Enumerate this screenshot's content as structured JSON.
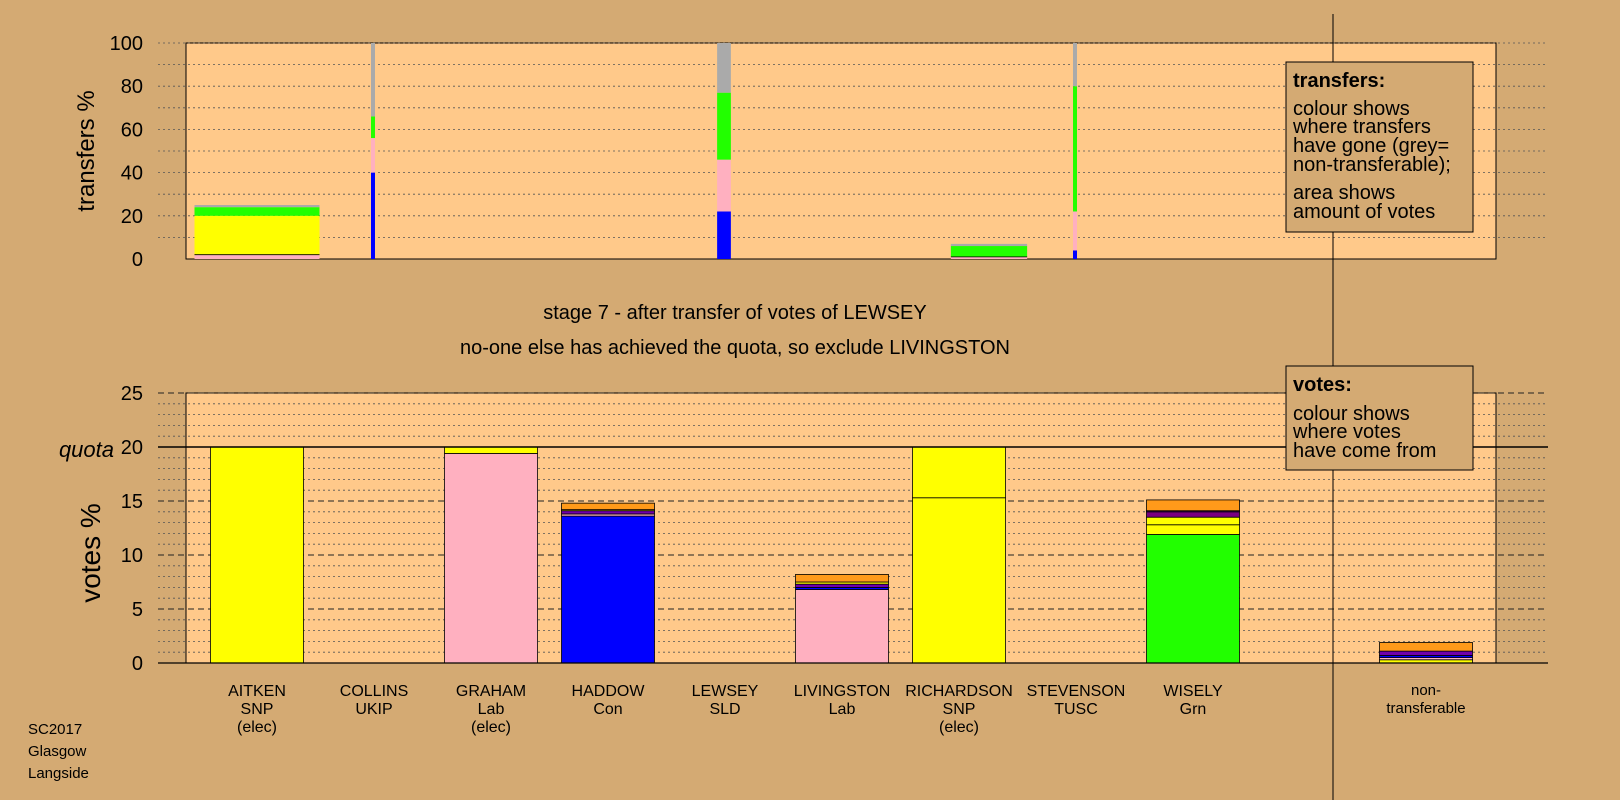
{
  "colors": {
    "background": "#d4aa73",
    "panel": "#ffc98a",
    "party": {
      "SNP": "#ffff00",
      "Lab": "#ffb0c0",
      "Con": "#0000ff",
      "Grn": "#22ff00",
      "SLD": "#ff9a1a",
      "TUSC": "#7a0080",
      "UKIP": "#7000aa",
      "NT": "#aaaaaa"
    }
  },
  "headings": {
    "stage": "stage 7 - after transfer of votes of LEWSEY",
    "action": "no-one else has achieved the quota, so exclude LIVINGSTON"
  },
  "footer": [
    "SC2017",
    "Glasgow",
    "Langside"
  ],
  "legend_transfers": {
    "title": "transfers:",
    "lines1": [
      "colour shows",
      "where transfers",
      "have gone (grey=",
      "non-transferable);"
    ],
    "lines2": [
      "area shows",
      "amount of votes"
    ]
  },
  "legend_votes": {
    "title": "votes:",
    "lines": [
      "colour shows",
      "where votes",
      "have come from"
    ]
  },
  "chart_data": [
    {
      "type": "bar",
      "stacked": true,
      "ylabel": "transfers %",
      "ylim": [
        0,
        100
      ],
      "yticks": [
        0,
        20,
        40,
        60,
        80,
        100
      ],
      "grid": "dotted every 10",
      "note": "bar width shows amount of votes transferred; segments show where transfers have gone",
      "bars": [
        {
          "candidate": "AITKEN",
          "share": 1.0,
          "segments": [
            {
              "party": "Lab",
              "from": 0,
              "to": 2
            },
            {
              "party": "SNP",
              "from": 2,
              "to": 20
            },
            {
              "party": "Grn",
              "from": 20,
              "to": 24
            },
            {
              "party": "NT",
              "from": 24,
              "to": 25
            }
          ]
        },
        {
          "candidate": "COLLINS",
          "share": 0.03,
          "segments": [
            {
              "party": "Con",
              "from": 0,
              "to": 40
            },
            {
              "party": "Lab",
              "from": 40,
              "to": 56
            },
            {
              "party": "Grn",
              "from": 56,
              "to": 66
            },
            {
              "party": "NT",
              "from": 66,
              "to": 100
            }
          ]
        },
        {
          "candidate": "LEWSEY",
          "share": 0.11,
          "segments": [
            {
              "party": "Con",
              "from": 0,
              "to": 22
            },
            {
              "party": "Lab",
              "from": 22,
              "to": 46
            },
            {
              "party": "Grn",
              "from": 46,
              "to": 77
            },
            {
              "party": "NT",
              "from": 77,
              "to": 100
            }
          ]
        },
        {
          "candidate": "RICHARDSON",
          "share": 0.61,
          "segments": [
            {
              "party": "Lab",
              "from": 0,
              "to": 1
            },
            {
              "party": "Grn",
              "from": 1,
              "to": 6
            },
            {
              "party": "NT",
              "from": 6,
              "to": 7
            }
          ]
        },
        {
          "candidate": "STEVENSON",
          "share": 0.03,
          "segments": [
            {
              "party": "Con",
              "from": 0,
              "to": 4
            },
            {
              "party": "Lab",
              "from": 4,
              "to": 22
            },
            {
              "party": "Grn",
              "from": 22,
              "to": 80
            },
            {
              "party": "NT",
              "from": 80,
              "to": 100
            }
          ]
        }
      ]
    },
    {
      "type": "bar",
      "stacked": true,
      "ylabel": "votes %",
      "ylim": [
        0,
        25
      ],
      "yticks": [
        0,
        5,
        10,
        15,
        20,
        25
      ],
      "quota": {
        "label": "quota",
        "value": 20
      },
      "grid": "dashed every 5, dotted every 1",
      "categories": [
        {
          "name": "AITKEN",
          "party": "SNP",
          "status": "(elec)"
        },
        {
          "name": "COLLINS",
          "party": "UKIP",
          "status": ""
        },
        {
          "name": "GRAHAM",
          "party": "Lab",
          "status": "(elec)"
        },
        {
          "name": "HADDOW",
          "party": "Con",
          "status": ""
        },
        {
          "name": "LEWSEY",
          "party": "SLD",
          "status": ""
        },
        {
          "name": "LIVINGSTON",
          "party": "Lab",
          "status": ""
        },
        {
          "name": "RICHARDSON",
          "party": "SNP",
          "status": "(elec)"
        },
        {
          "name": "STEVENSON",
          "party": "TUSC",
          "status": ""
        },
        {
          "name": "WISELY",
          "party": "Grn",
          "status": ""
        }
      ],
      "nontransferable_label": [
        "non-",
        "transferable"
      ],
      "stacks": [
        [
          {
            "party": "SNP",
            "value": 20
          }
        ],
        [],
        [
          {
            "party": "Lab",
            "value": 19.4
          },
          {
            "party": "SNP",
            "value": 0.6
          }
        ],
        [
          {
            "party": "Con",
            "value": 13.6
          },
          {
            "party": "Lab",
            "value": 0.2
          },
          {
            "party": "UKIP",
            "value": 0.3
          },
          {
            "party": "SNP",
            "value": 0.1
          },
          {
            "party": "SLD",
            "value": 0.6
          }
        ],
        [],
        [
          {
            "party": "Lab",
            "value": 6.8
          },
          {
            "party": "Con",
            "value": 0.2
          },
          {
            "party": "UKIP",
            "value": 0.3
          },
          {
            "party": "SNP",
            "value": 0.2
          },
          {
            "party": "SLD",
            "value": 0.7
          }
        ],
        [
          {
            "party": "SNP",
            "value": 15.3
          },
          {
            "party": "SNP",
            "value": 4.7
          }
        ],
        [],
        [
          {
            "party": "Grn",
            "value": 11.9
          },
          {
            "party": "SNP",
            "value": 0.9
          },
          {
            "party": "SNP",
            "value": 0.7
          },
          {
            "party": "TUSC",
            "value": 0.5
          },
          {
            "party": "UKIP",
            "value": 0.1
          },
          {
            "party": "SLD",
            "value": 1.0
          }
        ],
        [
          {
            "party": "SNP",
            "value": 0.3
          },
          {
            "party": "Lab",
            "value": 0.2
          },
          {
            "party": "Con",
            "value": 0.2
          },
          {
            "party": "UKIP",
            "value": 0.4
          },
          {
            "party": "SLD",
            "value": 0.8
          }
        ]
      ]
    }
  ]
}
